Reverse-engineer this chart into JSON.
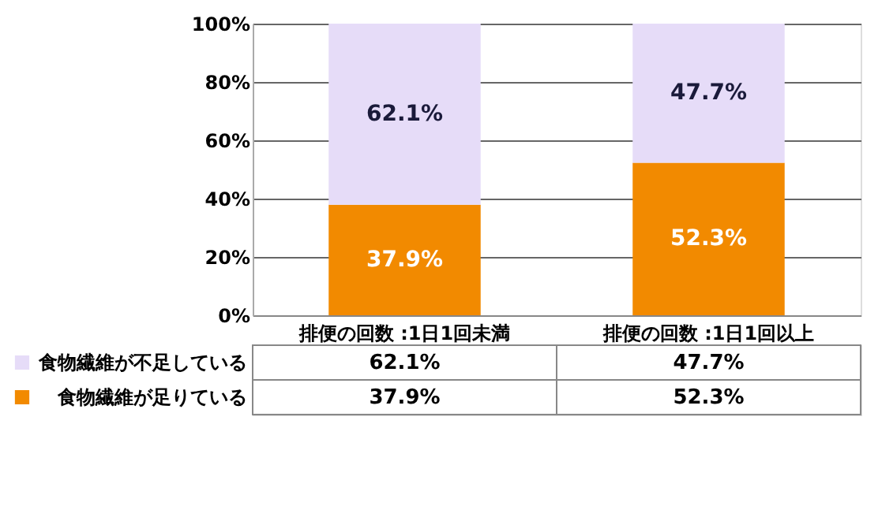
{
  "chart_data": {
    "type": "bar",
    "stacked": true,
    "categories": [
      "排便の回数 :1日1回未満",
      "排便の回数 :1日1回以上"
    ],
    "series": [
      {
        "name": "食物繊維が足りている",
        "color": "#f28a00",
        "values": [
          37.9,
          52.3
        ],
        "value_labels": [
          "37.9%",
          "52.3%"
        ]
      },
      {
        "name": "食物繊維が不足している",
        "color": "#e6dcf8",
        "values": [
          62.1,
          47.7
        ],
        "value_labels": [
          "62.1%",
          "47.7%"
        ]
      }
    ],
    "ylim": [
      0,
      100
    ],
    "yticks": [
      {
        "value": 0,
        "label": "0%"
      },
      {
        "value": 20,
        "label": "20%"
      },
      {
        "value": 40,
        "label": "40%"
      },
      {
        "value": 60,
        "label": "60%"
      },
      {
        "value": 80,
        "label": "80%"
      },
      {
        "value": 100,
        "label": "100%"
      }
    ],
    "grid": "y",
    "legend": "bottom"
  }
}
